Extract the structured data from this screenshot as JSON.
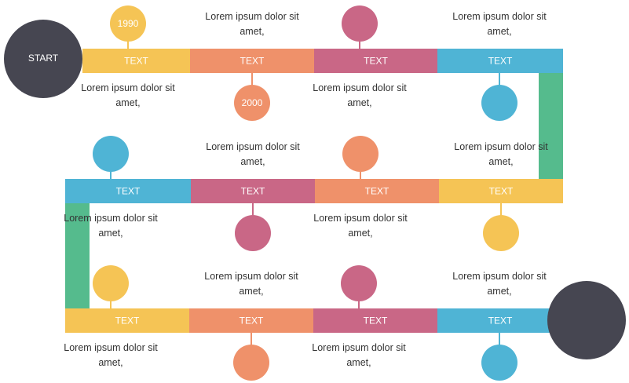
{
  "start": "START",
  "segments": [
    {
      "label": "TEXT",
      "caption": "Lorem ipsum dolor sit amet,",
      "marker": "1990"
    },
    {
      "label": "TEXT",
      "caption": "Lorem ipsum dolor sit amet,",
      "marker": "2000"
    },
    {
      "label": "TEXT",
      "caption": "Lorem ipsum dolor sit amet,"
    },
    {
      "label": "TEXT",
      "caption": "Lorem ipsum dolor sit amet,"
    },
    {
      "label": "TEXT",
      "caption": "Lorem ipsum dolor sit amet,"
    },
    {
      "label": "TEXT",
      "caption": "Lorem ipsum dolor sit amet,"
    },
    {
      "label": "TEXT",
      "caption": "Lorem ipsum dolor sit amet,"
    },
    {
      "label": "TEXT",
      "caption": "Lorem ipsum dolor sit amet,"
    },
    {
      "label": "TEXT",
      "caption": "Lorem ipsum dolor sit amet,"
    },
    {
      "label": "TEXT",
      "caption": "Lorem ipsum dolor sit amet,"
    },
    {
      "label": "TEXT",
      "caption": "Lorem ipsum dolor sit amet,"
    },
    {
      "label": "TEXT",
      "caption": "Lorem ipsum dolor sit amet,"
    }
  ]
}
